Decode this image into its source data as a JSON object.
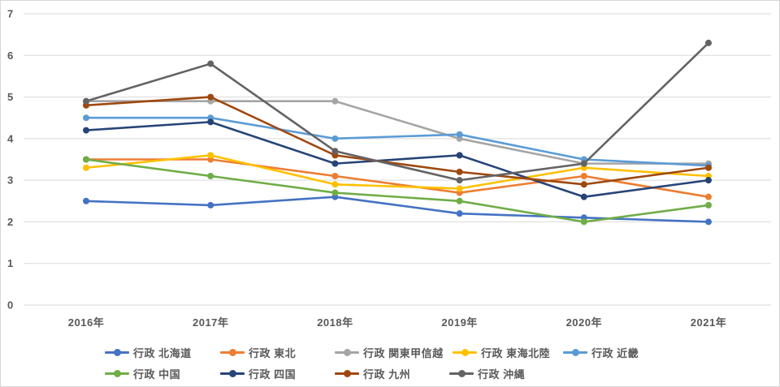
{
  "chart_data": {
    "type": "line",
    "title": "",
    "xlabel": "",
    "ylabel": "",
    "x_categories": [
      "2016年",
      "2017年",
      "2018年",
      "2019年",
      "2020年",
      "2021年"
    ],
    "yticks": [
      "0",
      "1",
      "2",
      "3",
      "4",
      "5",
      "6",
      "7"
    ],
    "ylim": [
      0,
      7
    ],
    "grid": "horizontal",
    "gridline_color": "#d9d9d9",
    "axis_text_color": "#595959",
    "legend_position": "bottom",
    "series": [
      {
        "name": "行政 北海道",
        "color": "#4472C4",
        "values": [
          2.5,
          2.4,
          2.6,
          2.2,
          2.1,
          2.0
        ]
      },
      {
        "name": "行政 東北",
        "color": "#ED7D31",
        "values": [
          3.5,
          3.5,
          3.1,
          2.7,
          3.1,
          2.6
        ]
      },
      {
        "name": "行政 関東甲信越",
        "color": "#A5A5A5",
        "values": [
          4.9,
          4.9,
          4.9,
          4.0,
          3.4,
          3.4
        ]
      },
      {
        "name": "行政 東海北陸",
        "color": "#FFC000",
        "values": [
          3.3,
          3.6,
          2.9,
          2.8,
          3.3,
          3.1
        ]
      },
      {
        "name": "行政 近畿",
        "color": "#5B9BD5",
        "values": [
          4.5,
          4.5,
          4.0,
          4.1,
          3.5,
          3.35
        ]
      },
      {
        "name": "行政 中国",
        "color": "#70AD47",
        "values": [
          3.5,
          3.1,
          2.7,
          2.5,
          2.0,
          2.4
        ]
      },
      {
        "name": "行政 四国",
        "color": "#264478",
        "values": [
          4.2,
          4.4,
          3.4,
          3.6,
          2.6,
          3.0
        ]
      },
      {
        "name": "行政 九州",
        "color": "#9E480E",
        "values": [
          4.8,
          5.0,
          3.6,
          3.2,
          2.9,
          3.3
        ]
      },
      {
        "name": "行政 沖縄",
        "color": "#636363",
        "values": [
          4.9,
          5.8,
          3.7,
          3.0,
          3.4,
          6.3
        ]
      }
    ]
  }
}
